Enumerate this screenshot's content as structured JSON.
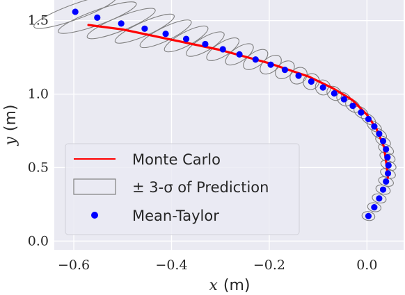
{
  "chart_data": {
    "type": "scatter",
    "title": "",
    "xlabel": {
      "var": "x",
      "unit": "(m)"
    },
    "ylabel": {
      "var": "y",
      "unit": "(m)"
    },
    "xlim": [
      -0.64,
      0.075
    ],
    "ylim": [
      -0.06,
      1.64
    ],
    "xticks": [
      -0.6,
      -0.4,
      -0.2,
      0.0
    ],
    "xtick_labels": [
      "−0.6",
      "−0.4",
      "−0.2",
      "0.0"
    ],
    "yticks": [
      0.0,
      0.5,
      1.0,
      1.5
    ],
    "ytick_labels": [
      "0.0",
      "0.5",
      "1.0",
      "1.5"
    ],
    "grid": true,
    "background": "#EAEAF2",
    "legend": {
      "placement": "lower-left",
      "entries": [
        {
          "label": "Monte Carlo",
          "kind": "line",
          "color": "#FF0000"
        },
        {
          "label": "± 3-σ of Prediction",
          "kind": "ellipse",
          "color": "#7F7F7F"
        },
        {
          "label": "Mean-Taylor",
          "kind": "marker",
          "color": "#0000FF"
        }
      ]
    },
    "series": [
      {
        "name": "Monte Carlo",
        "style": "line",
        "color": "#FF0000",
        "x": [
          -0.57,
          -0.5,
          -0.4,
          -0.3,
          -0.2,
          -0.12,
          -0.07,
          -0.03,
          0.0,
          0.02,
          0.035,
          0.04,
          0.043
        ],
        "y": [
          1.47,
          1.44,
          1.37,
          1.3,
          1.21,
          1.12,
          1.04,
          0.96,
          0.86,
          0.76,
          0.64,
          0.52,
          0.43
        ]
      },
      {
        "name": "Mean-Taylor",
        "style": "marker",
        "color": "#0000FF",
        "x": [
          -0.597,
          -0.552,
          -0.503,
          -0.455,
          -0.412,
          -0.37,
          -0.331,
          -0.295,
          -0.261,
          -0.228,
          -0.197,
          -0.168,
          -0.14,
          -0.114,
          -0.09,
          -0.067,
          -0.047,
          -0.029,
          -0.012,
          0.003,
          0.015,
          0.025,
          0.033,
          0.039,
          0.042,
          0.044,
          0.043,
          0.039,
          0.033,
          0.025,
          0.015,
          0.003
        ],
        "y": [
          1.56,
          1.52,
          1.48,
          1.445,
          1.41,
          1.375,
          1.34,
          1.305,
          1.27,
          1.235,
          1.2,
          1.165,
          1.125,
          1.085,
          1.045,
          1.005,
          0.965,
          0.92,
          0.875,
          0.83,
          0.78,
          0.73,
          0.68,
          0.625,
          0.57,
          0.515,
          0.46,
          0.405,
          0.35,
          0.29,
          0.23,
          0.17
        ]
      }
    ],
    "ellipses": {
      "name": "± 3-σ of Prediction",
      "color": "#7F7F7F",
      "semi_axes_data_units": [
        [
          0.09,
          0.052
        ],
        [
          0.085,
          0.05
        ],
        [
          0.075,
          0.048
        ],
        [
          0.066,
          0.047
        ],
        [
          0.058,
          0.046
        ],
        [
          0.05,
          0.046
        ],
        [
          0.044,
          0.046
        ],
        [
          0.038,
          0.046
        ],
        [
          0.033,
          0.047
        ],
        [
          0.029,
          0.048
        ],
        [
          0.025,
          0.049
        ],
        [
          0.022,
          0.05
        ],
        [
          0.019,
          0.051
        ],
        [
          0.017,
          0.052
        ],
        [
          0.015,
          0.053
        ],
        [
          0.013,
          0.054
        ],
        [
          0.012,
          0.055
        ],
        [
          0.011,
          0.055
        ],
        [
          0.01,
          0.055
        ],
        [
          0.009,
          0.055
        ],
        [
          0.009,
          0.055
        ],
        [
          0.009,
          0.055
        ],
        [
          0.009,
          0.055
        ],
        [
          0.009,
          0.055
        ],
        [
          0.009,
          0.055
        ],
        [
          0.009,
          0.054
        ],
        [
          0.009,
          0.053
        ],
        [
          0.009,
          0.052
        ],
        [
          0.009,
          0.05
        ],
        [
          0.009,
          0.048
        ],
        [
          0.009,
          0.046
        ],
        [
          0.009,
          0.044
        ]
      ],
      "rotation_deg": [
        -20,
        -20,
        -22,
        -24,
        -26,
        -28,
        -30,
        -32,
        -34,
        -36,
        -38,
        -40,
        -42,
        -44,
        -46,
        -48,
        -50,
        -52,
        -54,
        -56,
        -58,
        -60,
        -62,
        -64,
        -66,
        -68,
        -70,
        -72,
        -74,
        -76,
        -78,
        -80
      ]
    }
  }
}
